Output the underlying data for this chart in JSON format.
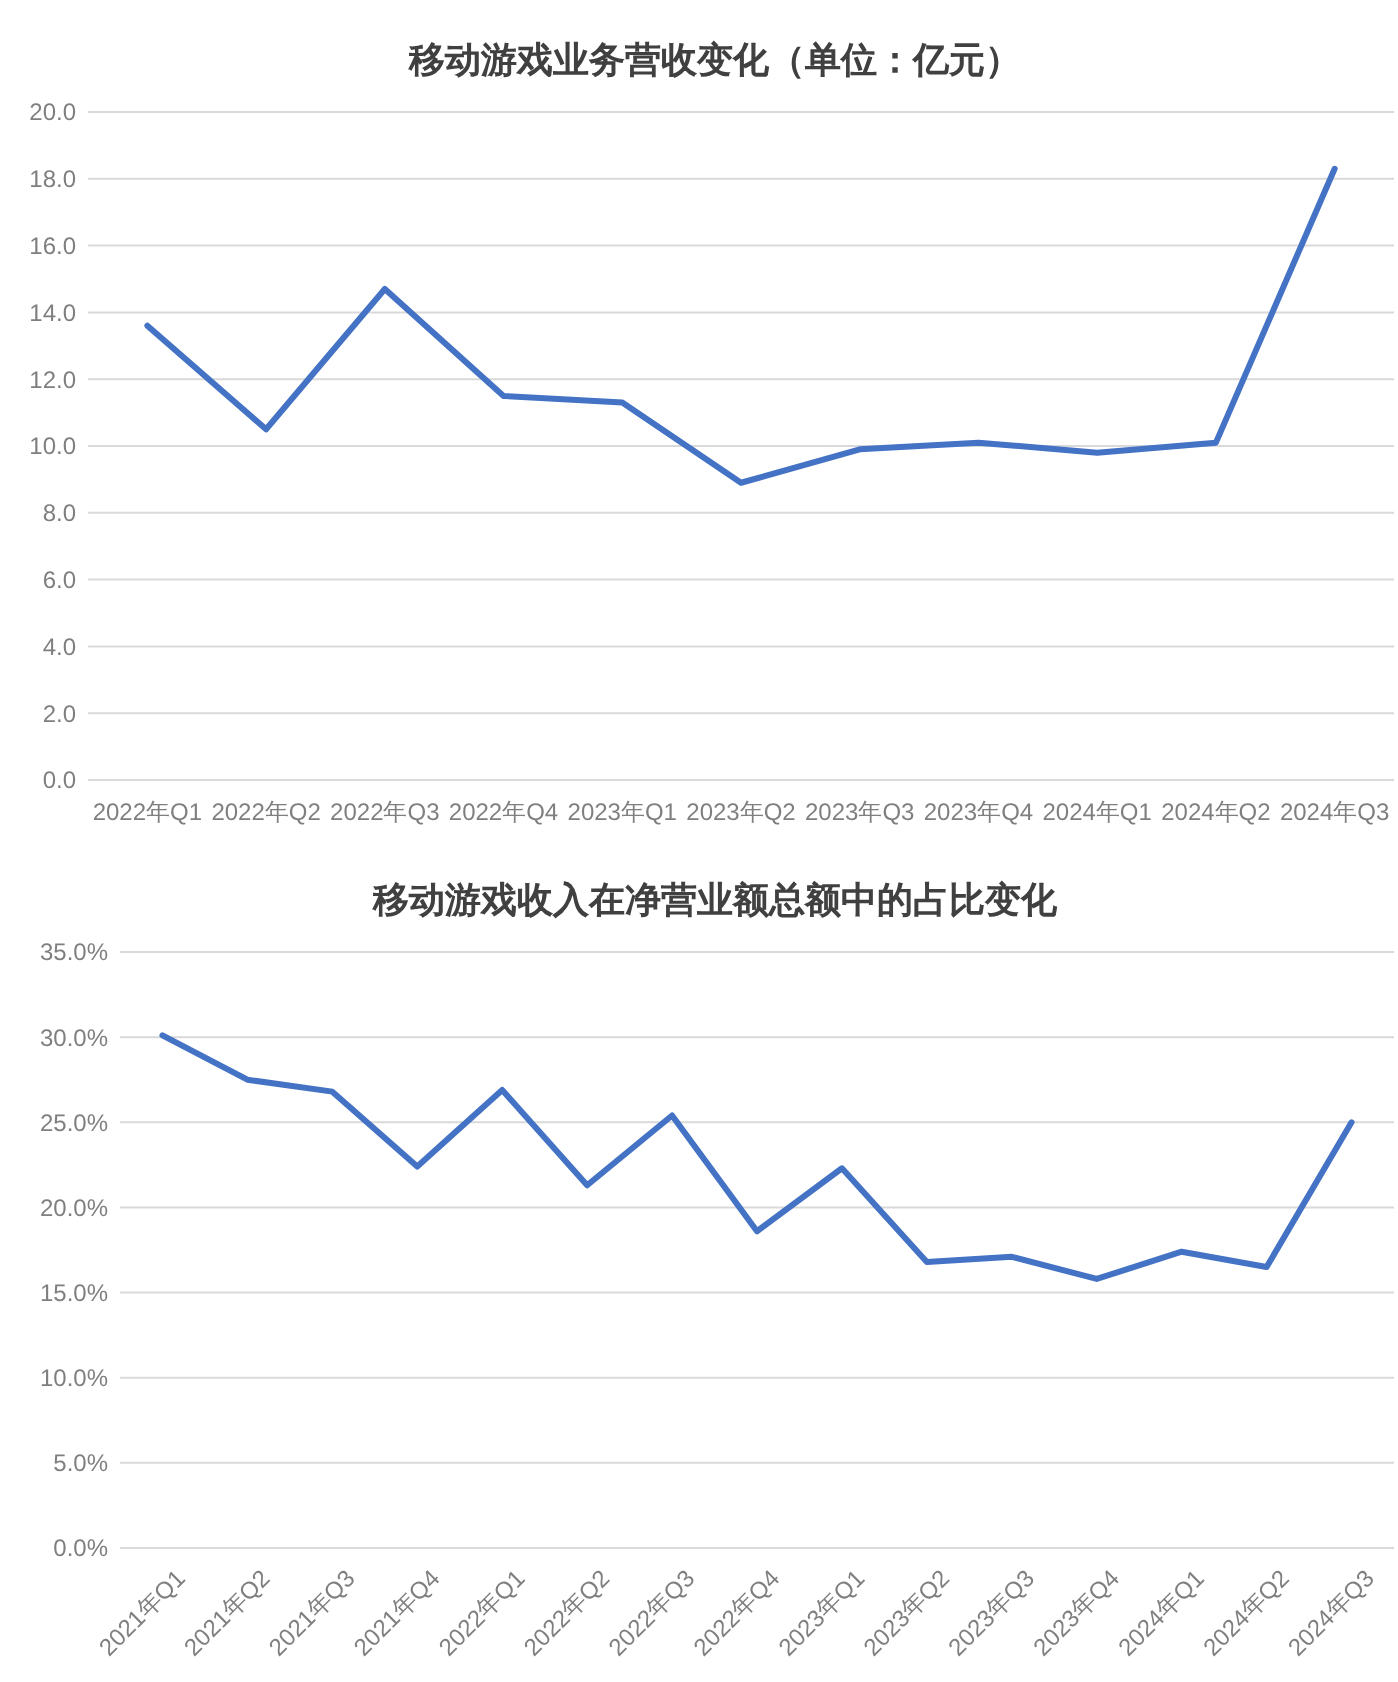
{
  "chart_data": [
    {
      "type": "line",
      "title": "移动游戏业务营收变化（单位：亿元）",
      "categories": [
        "2022年Q1",
        "2022年Q2",
        "2022年Q3",
        "2022年Q4",
        "2023年Q1",
        "2023年Q2",
        "2023年Q3",
        "2023年Q4",
        "2024年Q1",
        "2024年Q2",
        "2024年Q3"
      ],
      "series": [
        {
          "color": "#4472c4",
          "values": [
            13.6,
            10.5,
            14.7,
            11.5,
            11.3,
            8.9,
            9.9,
            10.1,
            9.8,
            10.1,
            18.3
          ]
        }
      ],
      "ylim": [
        0,
        20
      ],
      "yticks": [
        {
          "value": 0,
          "label": "0.0"
        },
        {
          "value": 2,
          "label": "2.0"
        },
        {
          "value": 4,
          "label": "4.0"
        },
        {
          "value": 6,
          "label": "6.0"
        },
        {
          "value": 8,
          "label": "8.0"
        },
        {
          "value": 10,
          "label": "10.0"
        },
        {
          "value": 12,
          "label": "12.0"
        },
        {
          "value": 14,
          "label": "14.0"
        },
        {
          "value": 16,
          "label": "16.0"
        },
        {
          "value": 18,
          "label": "18.0"
        },
        {
          "value": 20,
          "label": "20.0"
        }
      ],
      "grid": "y",
      "marker": "none",
      "line_style": "solid"
    },
    {
      "type": "line",
      "title": "移动游戏收入在净营业额总额中的占比变化",
      "categories": [
        "2021年Q1",
        "2021年Q2",
        "2021年Q3",
        "2021年Q4",
        "2022年Q1",
        "2022年Q2",
        "2022年Q3",
        "2022年Q4",
        "2023年Q1",
        "2023年Q2",
        "2023年Q3",
        "2023年Q4",
        "2024年Q1",
        "2024年Q2",
        "2024年Q3"
      ],
      "series": [
        {
          "color": "#4472c4",
          "values": [
            30.1,
            27.5,
            26.8,
            22.4,
            26.9,
            21.3,
            25.4,
            18.6,
            22.3,
            16.8,
            17.1,
            15.8,
            17.4,
            16.5,
            25.0
          ]
        }
      ],
      "ylim": [
        0,
        35
      ],
      "yticks": [
        {
          "value": 0,
          "label": "0.0%"
        },
        {
          "value": 5,
          "label": "5.0%"
        },
        {
          "value": 10,
          "label": "10.0%"
        },
        {
          "value": 15,
          "label": "15.0%"
        },
        {
          "value": 20,
          "label": "20.0%"
        },
        {
          "value": 25,
          "label": "25.0%"
        },
        {
          "value": 30,
          "label": "30.0%"
        },
        {
          "value": 35,
          "label": "35.0%"
        }
      ],
      "grid": "y",
      "marker": "none",
      "line_style": "solid"
    }
  ]
}
